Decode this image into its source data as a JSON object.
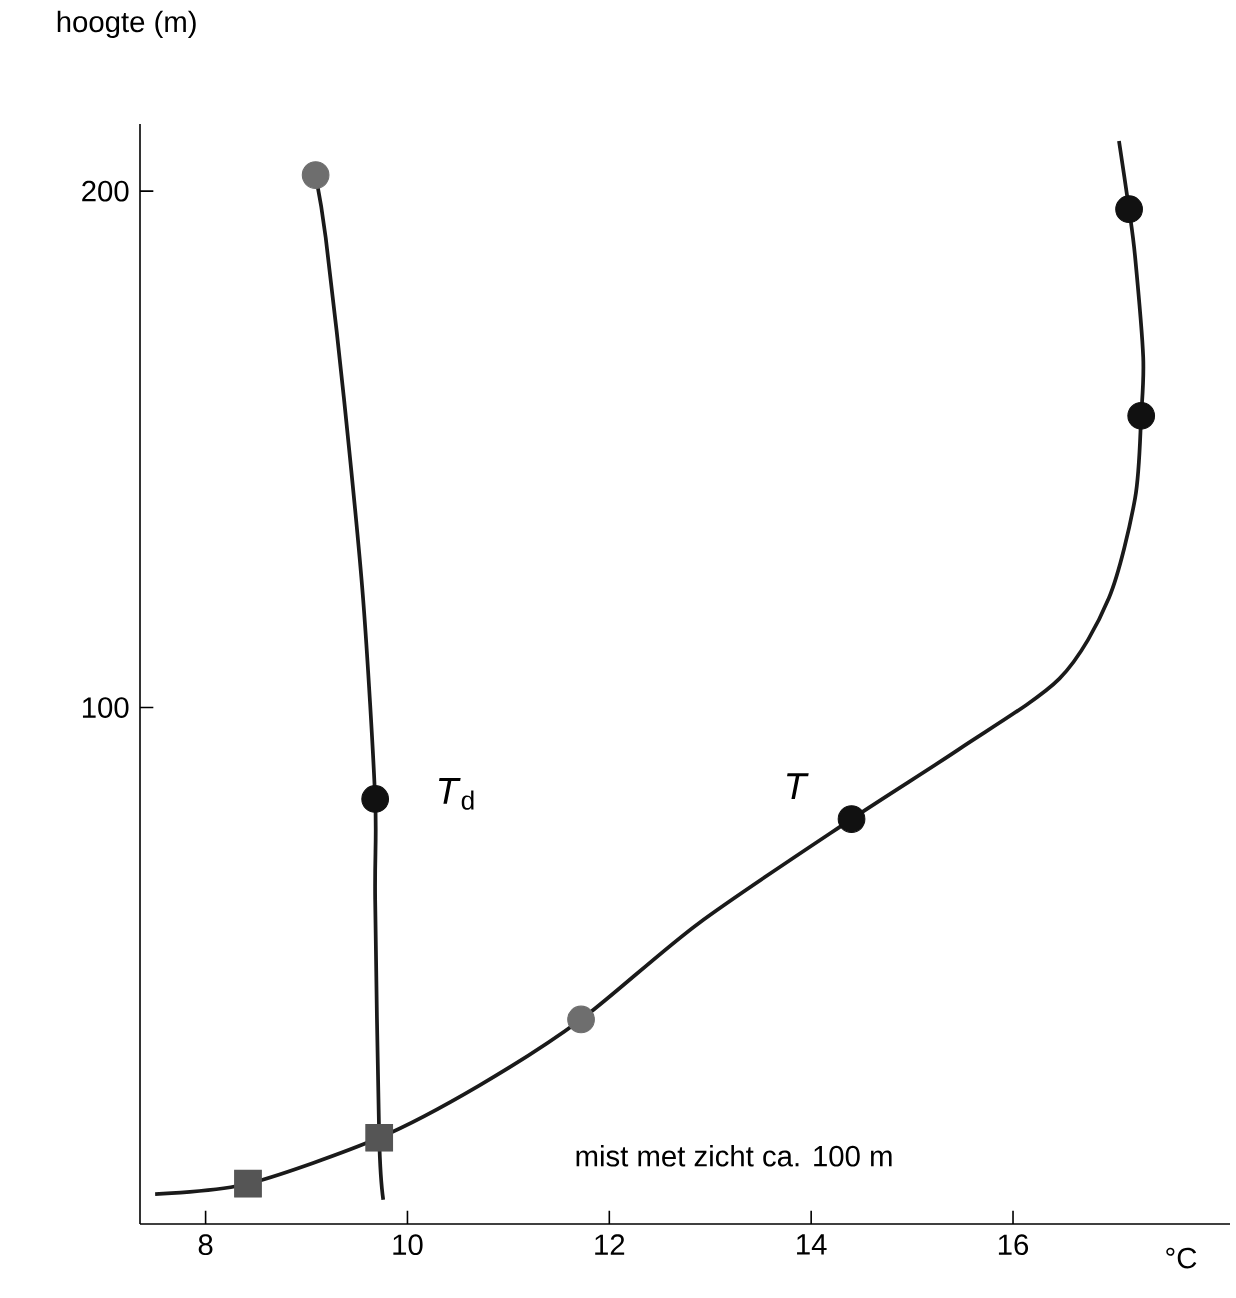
{
  "chart_data": {
    "type": "line",
    "xlabel": "°C",
    "ylabel": "hoogte (m)",
    "xlim": [
      7.35,
      18.15
    ],
    "ylim": [
      0,
      213
    ],
    "xticks": [
      8,
      10,
      12,
      14,
      16
    ],
    "yticks": [
      100,
      200
    ],
    "line_style": "solid",
    "series": [
      {
        "color": "#1a1a1a",
        "marker": "none",
        "x": [
          7.5,
          8.42,
          9.72,
          10.71,
          11.72,
          12.89,
          14.4,
          15.47,
          16.46,
          16.95,
          17.21,
          17.27,
          17.29,
          17.21,
          17.15,
          17.05
        ],
        "values": [
          5.8,
          7.8,
          16.7,
          26.8,
          39.6,
          58.3,
          78.4,
          92.0,
          105.6,
          121.2,
          140.6,
          156.5,
          167.8,
          187.2,
          196.5,
          209.7
        ]
      },
      {
        "color": "#1a1a1a",
        "marker": "none",
        "x": [
          9.76,
          9.72,
          9.68,
          9.68,
          9.56,
          9.37,
          9.19,
          9.09
        ],
        "values": [
          4.7,
          16.7,
          62.9,
          82.3,
          121.2,
          160,
          191,
          203.1
        ]
      },
      {
        "type": "scatter",
        "color": "#111111",
        "marker": "circle",
        "x": [
          14.4,
          17.27,
          17.15,
          9.68
        ],
        "values": [
          78.4,
          156.5,
          196.5,
          82.3
        ]
      },
      {
        "type": "scatter",
        "color": "#6e6e6e",
        "marker": "circle",
        "x": [
          11.72,
          9.09
        ],
        "values": [
          39.6,
          203.1
        ]
      },
      {
        "type": "scatter",
        "color": "#555555",
        "marker": "square",
        "x": [
          8.42,
          9.72
        ],
        "values": [
          7.8,
          16.7
        ]
      }
    ],
    "annotations": [
      "*T*",
      "*T*$_{d}$",
      "mist met zicht ca. 100 m"
    ]
  }
}
